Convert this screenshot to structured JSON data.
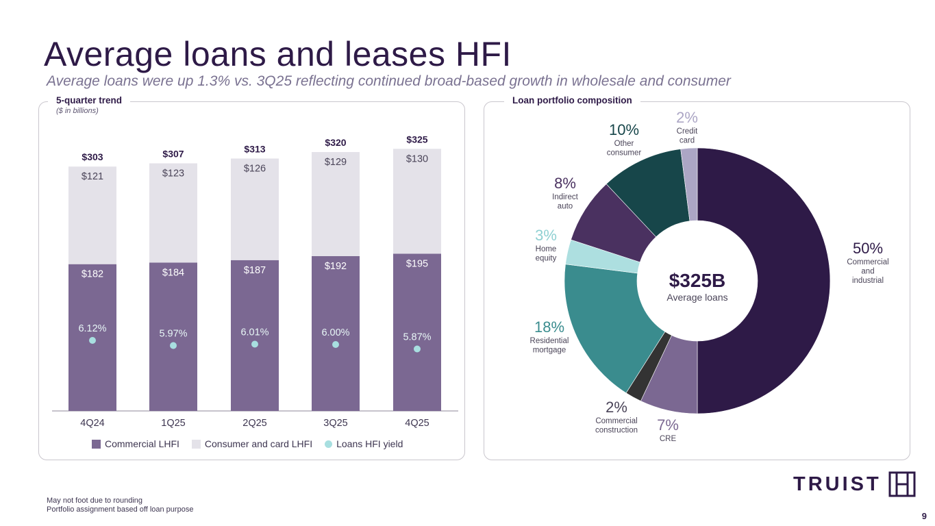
{
  "title": "Average loans and leases HFI",
  "subtitle": "Average loans were up 1.3% vs. 3Q25 reflecting continued broad-based growth in wholesale and consumer",
  "left_panel": {
    "heading": "5-quarter trend",
    "units": "($ in billions)"
  },
  "right_panel": {
    "heading": "Loan portfolio composition"
  },
  "legend": {
    "commercial": "Commercial LHFI",
    "consumer": "Consumer and card LHFI",
    "yield": "Loans HFI yield"
  },
  "colors": {
    "commercial": "#7b6892",
    "consumer": "#e4e2e9",
    "yield": "#a8dfe0",
    "c_and_i": "#2e1a47",
    "cre": "#7b6892",
    "construction": "#333333",
    "residential": "#3a8c8e",
    "home_equity": "#addfe0",
    "indirect_auto": "#4a3160",
    "other_consumer": "#17464a",
    "credit_card": "#aca6c5"
  },
  "chart_data": [
    {
      "type": "bar",
      "stacked": true,
      "categories": [
        "4Q24",
        "1Q25",
        "2Q25",
        "3Q25",
        "4Q25"
      ],
      "totals": [
        "$303",
        "$307",
        "$313",
        "$320",
        "$325"
      ],
      "series": [
        {
          "name": "Commercial LHFI",
          "values": [
            182,
            184,
            187,
            192,
            195
          ],
          "labels": [
            "$182",
            "$184",
            "$187",
            "$192",
            "$195"
          ]
        },
        {
          "name": "Consumer and card LHFI",
          "values": [
            121,
            123,
            126,
            129,
            130
          ],
          "labels": [
            "$121",
            "$123",
            "$126",
            "$129",
            "$130"
          ]
        }
      ],
      "overlay": {
        "name": "Loans HFI yield",
        "type": "scatter",
        "values": [
          6.12,
          5.97,
          6.01,
          6.0,
          5.87
        ],
        "labels": [
          "6.12%",
          "5.97%",
          "6.01%",
          "6.00%",
          "5.87%"
        ]
      },
      "legend_position": "bottom"
    },
    {
      "type": "pie",
      "donut": true,
      "center_value": "$325B",
      "center_label": "Average loans",
      "slices": [
        {
          "key": "c_and_i",
          "label": [
            "Commercial",
            "and",
            "industrial"
          ],
          "pct_label": "50%",
          "value": 50
        },
        {
          "key": "cre",
          "label": [
            "CRE"
          ],
          "pct_label": "7%",
          "value": 7
        },
        {
          "key": "construction",
          "label": [
            "Commercial",
            "construction"
          ],
          "pct_label": "2%",
          "value": 2
        },
        {
          "key": "residential",
          "label": [
            "Residential",
            "mortgage"
          ],
          "pct_label": "18%",
          "value": 18
        },
        {
          "key": "home_equity",
          "label": [
            "Home",
            "equity"
          ],
          "pct_label": "3%",
          "value": 3
        },
        {
          "key": "indirect_auto",
          "label": [
            "Indirect",
            "auto"
          ],
          "pct_label": "8%",
          "value": 8
        },
        {
          "key": "other_consumer",
          "label": [
            "Other",
            "consumer"
          ],
          "pct_label": "10%",
          "value": 10
        },
        {
          "key": "credit_card",
          "label": [
            "Credit",
            "card"
          ],
          "pct_label": "2%",
          "value": 2
        }
      ]
    }
  ],
  "footnotes": [
    "May not foot due to rounding",
    "Portfolio assignment based off loan purpose"
  ],
  "logo_text": "TRUIST",
  "page_number": "9"
}
